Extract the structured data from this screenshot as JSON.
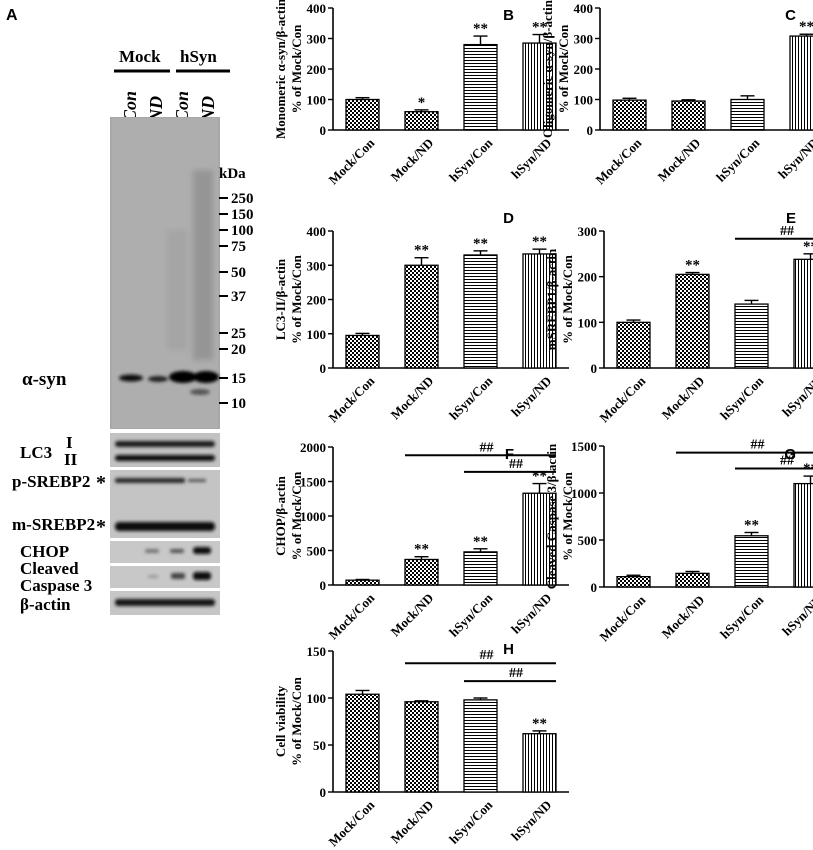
{
  "blot": {
    "panel_label": "A",
    "groups": [
      "Mock",
      "hSyn"
    ],
    "lanes": [
      "Con",
      "ND",
      "Con",
      "ND"
    ],
    "kda_label": "kDa",
    "markers": [
      "250",
      "150",
      "100",
      "75",
      "50",
      "37",
      "25",
      "20",
      "15",
      "10"
    ],
    "labels": {
      "asyn": "α-syn",
      "lc3": "LC3",
      "lc3_i": "I",
      "lc3_ii": "II",
      "psrebp2": "p-SREBP2",
      "msrebp2": "m-SREBP2",
      "chop": "CHOP",
      "cleaved": "Cleaved",
      "caspase3": "Caspase 3",
      "bactin": "β-actin",
      "star": "*"
    }
  },
  "fill_colors": [
    "#ffffff",
    "#ffffff",
    "#ffffff",
    "#ffffff"
  ],
  "chart_data": [
    {
      "id": "B",
      "type": "bar",
      "panel_label": "B",
      "categories": [
        "Mock/Con",
        "Mock/ND",
        "hSyn/Con",
        "hSyn/ND"
      ],
      "values": [
        100,
        60,
        280,
        285
      ],
      "errors": [
        6,
        6,
        28,
        28
      ],
      "ylabel_lines": [
        "Monomeric α-syn/β-actin",
        "% of Mock/Con"
      ],
      "ylim": [
        0,
        400
      ],
      "yticks": [
        0,
        100,
        200,
        300,
        400
      ],
      "sig": [
        "",
        "*",
        "**",
        "**"
      ],
      "brackets": []
    },
    {
      "id": "C",
      "type": "bar",
      "panel_label": "C",
      "categories": [
        "Mock/Con",
        "Mock/ND",
        "hSyn/Con",
        "hSyn/ND"
      ],
      "values": [
        98,
        95,
        100,
        308
      ],
      "errors": [
        6,
        4,
        12,
        6
      ],
      "ylabel_lines": [
        "Oligomeric α-syn/β-actin",
        "% of Mock/Con"
      ],
      "ylim": [
        0,
        400
      ],
      "yticks": [
        0,
        100,
        200,
        300,
        400
      ],
      "sig": [
        "",
        "",
        "",
        "**"
      ],
      "brackets": []
    },
    {
      "id": "D",
      "type": "bar",
      "panel_label": "D",
      "categories": [
        "Mock/Con",
        "Mock/ND",
        "hSyn/Con",
        "hSyn/ND"
      ],
      "values": [
        95,
        300,
        330,
        333
      ],
      "errors": [
        6,
        22,
        12,
        14
      ],
      "ylabel_lines": [
        "LC3-II/β-actin",
        "% of Mock/Con"
      ],
      "ylim": [
        0,
        400
      ],
      "yticks": [
        0,
        100,
        200,
        300,
        400
      ],
      "sig": [
        "",
        "**",
        "**",
        "**"
      ],
      "brackets": []
    },
    {
      "id": "E",
      "type": "bar",
      "panel_label": "E",
      "categories": [
        "Mock/Con",
        "Mock/ND",
        "hSyn/Con",
        "hSyn/ND"
      ],
      "values": [
        100,
        205,
        140,
        238
      ],
      "errors": [
        5,
        4,
        8,
        12
      ],
      "ylabel_lines": [
        "mSREBP1/β-actin",
        "% of Mock/Con"
      ],
      "ylim": [
        0,
        300
      ],
      "yticks": [
        0,
        100,
        200,
        300
      ],
      "sig": [
        "",
        "**",
        "",
        "**"
      ],
      "brackets": [
        {
          "from": 2,
          "to": 3,
          "y": 283,
          "label": "##"
        }
      ]
    },
    {
      "id": "F",
      "type": "bar",
      "panel_label": "F",
      "categories": [
        "Mock/Con",
        "Mock/ND",
        "hSyn/Con",
        "hSyn/ND"
      ],
      "values": [
        70,
        370,
        480,
        1330
      ],
      "errors": [
        10,
        40,
        45,
        140
      ],
      "ylabel_lines": [
        "CHOP/β-actin",
        "% of Mock/Con"
      ],
      "ylim": [
        0,
        2000
      ],
      "yticks": [
        0,
        500,
        1000,
        1500,
        2000
      ],
      "sig": [
        "",
        "**",
        "**",
        "**"
      ],
      "brackets": [
        {
          "from": 1,
          "to": 3,
          "y": 1880,
          "label": "##"
        },
        {
          "from": 2,
          "to": 3,
          "y": 1640,
          "label": "##"
        }
      ]
    },
    {
      "id": "G",
      "type": "bar",
      "panel_label": "G",
      "categories": [
        "Mock/Con",
        "Mock/ND",
        "hSyn/Con",
        "hSyn/ND"
      ],
      "values": [
        110,
        145,
        545,
        1100
      ],
      "errors": [
        15,
        20,
        35,
        80
      ],
      "ylabel_lines": [
        "Cleaved Caspase 3/β-actin",
        "% of Mock/Con"
      ],
      "ylim": [
        0,
        1500
      ],
      "yticks": [
        0,
        500,
        1000,
        1500
      ],
      "sig": [
        "",
        "",
        "**",
        "**"
      ],
      "brackets": [
        {
          "from": 1,
          "to": 3,
          "y": 1430,
          "label": "##"
        },
        {
          "from": 2,
          "to": 3,
          "y": 1260,
          "label": "##"
        }
      ]
    },
    {
      "id": "H",
      "type": "bar",
      "panel_label": "H",
      "categories": [
        "Mock/Con",
        "Mock/ND",
        "hSyn/Con",
        "hSyn/ND"
      ],
      "values": [
        104,
        96,
        98,
        62
      ],
      "errors": [
        4,
        1,
        2,
        3
      ],
      "ylabel_lines": [
        "Cell viability",
        "% of Mock/Con"
      ],
      "ylim": [
        0,
        150
      ],
      "yticks": [
        0,
        50,
        100,
        150
      ],
      "sig": [
        "",
        "",
        "",
        "**"
      ],
      "brackets": [
        {
          "from": 1,
          "to": 3,
          "y": 137,
          "label": "##"
        },
        {
          "from": 2,
          "to": 3,
          "y": 118,
          "label": "##"
        }
      ]
    }
  ]
}
